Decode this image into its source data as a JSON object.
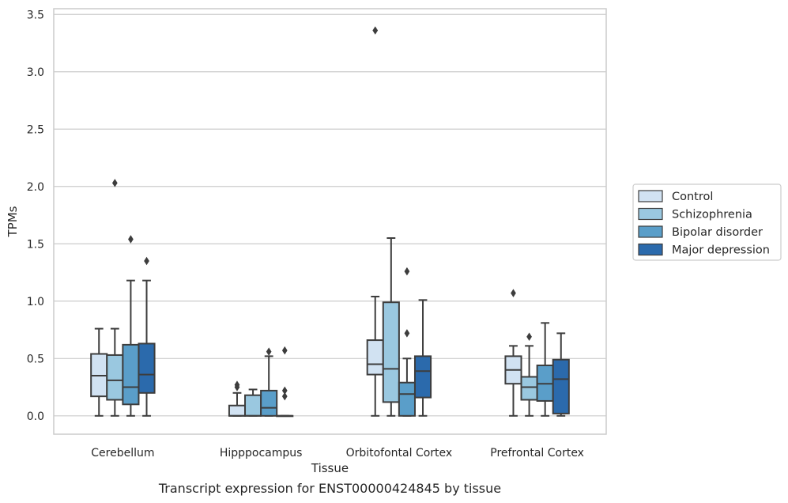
{
  "chart_data": {
    "type": "box",
    "xlabel": "Tissue",
    "ylabel": "TPMs",
    "caption": "Transcript expression for ENST00000424845 by tissue",
    "ylim": [
      -0.16,
      3.55
    ],
    "yticks": [
      0.0,
      0.5,
      1.0,
      1.5,
      2.0,
      2.5,
      3.0,
      3.5
    ],
    "ytick_labels": [
      "0.0",
      "0.5",
      "1.0",
      "1.5",
      "2.0",
      "2.5",
      "3.0",
      "3.5"
    ],
    "grid": "horizontal",
    "legend_position": "right",
    "categories": [
      "Cerebellum",
      "Hipppocampus",
      "Orbitofontal Cortex",
      "Prefrontal Cortex"
    ],
    "series": [
      {
        "name": "Control",
        "color": "#d1e2f2",
        "boxes": [
          {
            "whislo": 0.0,
            "q1": 0.17,
            "med": 0.35,
            "q3": 0.54,
            "whishi": 0.76,
            "fliers": []
          },
          {
            "whislo": 0.0,
            "q1": 0.0,
            "med": 0.0,
            "q3": 0.09,
            "whishi": 0.2,
            "fliers": [
              0.25,
              0.27
            ]
          },
          {
            "whislo": 0.0,
            "q1": 0.36,
            "med": 0.45,
            "q3": 0.66,
            "whishi": 1.04,
            "fliers": [
              3.36
            ]
          },
          {
            "whislo": 0.0,
            "q1": 0.28,
            "med": 0.4,
            "q3": 0.52,
            "whishi": 0.61,
            "fliers": [
              1.07
            ]
          }
        ]
      },
      {
        "name": "Schizophrenia",
        "color": "#9ac8e0",
        "boxes": [
          {
            "whislo": 0.0,
            "q1": 0.14,
            "med": 0.31,
            "q3": 0.53,
            "whishi": 0.76,
            "fliers": [
              2.03
            ]
          },
          {
            "whislo": 0.0,
            "q1": 0.0,
            "med": 0.0,
            "q3": 0.18,
            "whishi": 0.23,
            "fliers": []
          },
          {
            "whislo": 0.0,
            "q1": 0.12,
            "med": 0.41,
            "q3": 0.99,
            "whishi": 1.55,
            "fliers": []
          },
          {
            "whislo": 0.0,
            "q1": 0.14,
            "med": 0.25,
            "q3": 0.34,
            "whishi": 0.61,
            "fliers": [
              0.69
            ]
          }
        ]
      },
      {
        "name": "Bipolar disorder",
        "color": "#5a9ec9",
        "boxes": [
          {
            "whislo": 0.0,
            "q1": 0.1,
            "med": 0.25,
            "q3": 0.62,
            "whishi": 1.18,
            "fliers": [
              1.54
            ]
          },
          {
            "whislo": 0.0,
            "q1": 0.0,
            "med": 0.07,
            "q3": 0.22,
            "whishi": 0.52,
            "fliers": [
              0.56
            ]
          },
          {
            "whislo": 0.0,
            "q1": 0.0,
            "med": 0.19,
            "q3": 0.29,
            "whishi": 0.5,
            "fliers": [
              0.72,
              1.26
            ]
          },
          {
            "whislo": 0.0,
            "q1": 0.13,
            "med": 0.28,
            "q3": 0.44,
            "whishi": 0.81,
            "fliers": []
          }
        ]
      },
      {
        "name": "Major depression",
        "color": "#2b6aac",
        "boxes": [
          {
            "whislo": 0.0,
            "q1": 0.2,
            "med": 0.36,
            "q3": 0.63,
            "whishi": 1.18,
            "fliers": [
              1.35
            ]
          },
          {
            "whislo": 0.0,
            "q1": 0.0,
            "med": 0.0,
            "q3": 0.0,
            "whishi": 0.0,
            "fliers": [
              0.17,
              0.22,
              0.57
            ]
          },
          {
            "whislo": 0.0,
            "q1": 0.16,
            "med": 0.39,
            "q3": 0.52,
            "whishi": 1.01,
            "fliers": []
          },
          {
            "whislo": 0.0,
            "q1": 0.02,
            "med": 0.32,
            "q3": 0.49,
            "whishi": 0.72,
            "fliers": []
          }
        ]
      }
    ]
  }
}
